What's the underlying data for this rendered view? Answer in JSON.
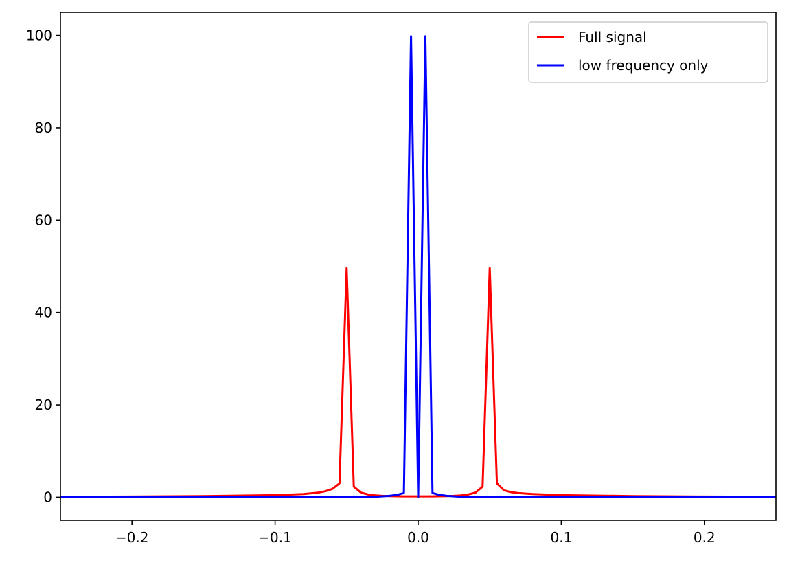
{
  "chart_data": {
    "type": "line",
    "title": "",
    "xlabel": "",
    "ylabel": "",
    "xlim": [
      -0.25,
      0.25
    ],
    "ylim": [
      -5,
      105
    ],
    "grid": false,
    "legend_position": "top-right",
    "x_ticks": [
      {
        "value": -0.2,
        "label": "−0.2"
      },
      {
        "value": -0.1,
        "label": "−0.1"
      },
      {
        "value": 0.0,
        "label": "0.0"
      },
      {
        "value": 0.1,
        "label": "0.1"
      },
      {
        "value": 0.2,
        "label": "0.2"
      }
    ],
    "y_ticks": [
      {
        "value": 0,
        "label": "0"
      },
      {
        "value": 20,
        "label": "20"
      },
      {
        "value": 40,
        "label": "40"
      },
      {
        "value": 60,
        "label": "60"
      },
      {
        "value": 80,
        "label": "80"
      },
      {
        "value": 100,
        "label": "100"
      }
    ],
    "series": [
      {
        "name": "Full signal",
        "color": "#ff0000",
        "x": [
          -0.25,
          -0.2,
          -0.15,
          -0.1,
          -0.08,
          -0.07,
          -0.065,
          -0.06,
          -0.055,
          -0.05,
          -0.045,
          -0.04,
          -0.035,
          -0.03,
          -0.025,
          -0.02,
          -0.01,
          0.0,
          0.01,
          0.02,
          0.025,
          0.03,
          0.035,
          0.04,
          0.045,
          0.05,
          0.055,
          0.06,
          0.065,
          0.07,
          0.08,
          0.1,
          0.15,
          0.2,
          0.25
        ],
        "y": [
          0.1,
          0.15,
          0.25,
          0.45,
          0.7,
          1.0,
          1.3,
          1.8,
          3.0,
          49.6,
          2.3,
          1.0,
          0.6,
          0.4,
          0.3,
          0.25,
          0.2,
          0.2,
          0.2,
          0.25,
          0.3,
          0.4,
          0.6,
          1.0,
          2.3,
          49.6,
          3.0,
          1.5,
          1.1,
          0.9,
          0.7,
          0.45,
          0.25,
          0.15,
          0.1
        ]
      },
      {
        "name": "low frequency only",
        "color": "#0000ff",
        "x": [
          -0.25,
          -0.2,
          -0.1,
          -0.05,
          -0.03,
          -0.02,
          -0.015,
          -0.01,
          -0.005,
          0.0,
          0.005,
          0.01,
          0.015,
          0.02,
          0.03,
          0.05,
          0.1,
          0.2,
          0.25
        ],
        "y": [
          0.05,
          0.05,
          0.05,
          0.05,
          0.1,
          0.3,
          0.5,
          0.9,
          99.8,
          0.0,
          99.8,
          0.9,
          0.5,
          0.3,
          0.1,
          0.05,
          0.05,
          0.05,
          0.05
        ]
      }
    ]
  }
}
